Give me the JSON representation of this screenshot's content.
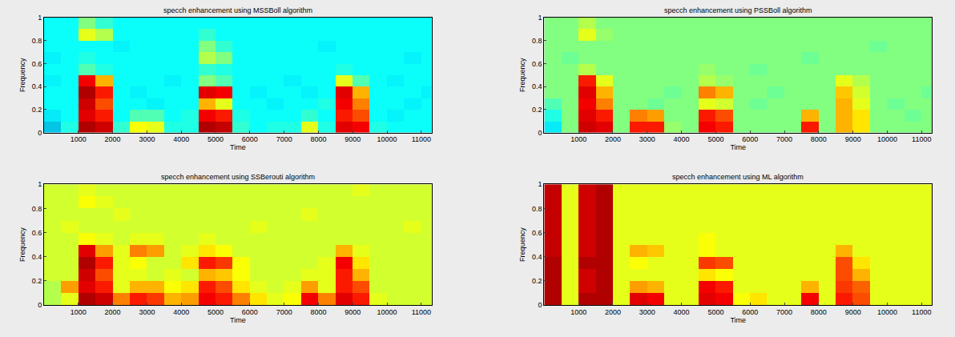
{
  "chart_data": [
    {
      "type": "heatmap",
      "title": "specch enhancement using MSSBoll algorithm",
      "x_label": "Time",
      "y_label": "Frequency",
      "color": "Jet",
      "grid": false,
      "zlim": [
        0,
        1
      ],
      "xlim": [
        0,
        11300
      ],
      "xticks": [
        1000,
        2000,
        3000,
        4000,
        5000,
        6000,
        7000,
        8000,
        9000,
        10000,
        11000
      ],
      "ylim": [
        0,
        1
      ],
      "yticks": [
        0,
        0.2,
        0.4,
        0.6,
        0.8,
        1
      ],
      "x": [
        250,
        750,
        1250,
        1750,
        2250,
        2750,
        3250,
        3750,
        4250,
        4750,
        5250,
        5750,
        6250,
        6750,
        7250,
        7750,
        8250,
        8750,
        9250,
        9750,
        10250,
        10750,
        11250
      ],
      "y": [
        0.05,
        0.15,
        0.25,
        0.35,
        0.45,
        0.55,
        0.65,
        0.75,
        0.85,
        0.95
      ],
      "z": [
        [
          0.3,
          0.4,
          0.95,
          0.92,
          0.42,
          0.62,
          0.6,
          0.4,
          0.4,
          0.95,
          0.93,
          0.42,
          0.38,
          0.4,
          0.4,
          0.6,
          0.4,
          0.9,
          0.88,
          0.4,
          0.38,
          0.38,
          0.38
        ],
        [
          0.35,
          0.38,
          0.9,
          0.85,
          0.38,
          0.45,
          0.45,
          0.38,
          0.4,
          0.88,
          0.85,
          0.4,
          0.38,
          0.38,
          0.38,
          0.42,
          0.38,
          0.85,
          0.8,
          0.38,
          0.36,
          0.38,
          0.38
        ],
        [
          0.38,
          0.38,
          0.92,
          0.8,
          0.38,
          0.38,
          0.36,
          0.38,
          0.38,
          0.7,
          0.6,
          0.38,
          0.38,
          0.36,
          0.38,
          0.38,
          0.4,
          0.88,
          0.75,
          0.38,
          0.38,
          0.36,
          0.38
        ],
        [
          0.38,
          0.38,
          0.95,
          0.85,
          0.38,
          0.36,
          0.38,
          0.38,
          0.38,
          0.9,
          0.88,
          0.38,
          0.36,
          0.38,
          0.38,
          0.36,
          0.38,
          0.9,
          0.7,
          0.38,
          0.38,
          0.38,
          0.36
        ],
        [
          0.36,
          0.38,
          0.88,
          0.7,
          0.38,
          0.38,
          0.38,
          0.36,
          0.38,
          0.5,
          0.45,
          0.38,
          0.38,
          0.38,
          0.36,
          0.38,
          0.38,
          0.6,
          0.45,
          0.38,
          0.36,
          0.38,
          0.38
        ],
        [
          0.38,
          0.38,
          0.45,
          0.4,
          0.38,
          0.38,
          0.38,
          0.38,
          0.38,
          0.42,
          0.4,
          0.38,
          0.38,
          0.38,
          0.38,
          0.38,
          0.38,
          0.4,
          0.38,
          0.38,
          0.38,
          0.38,
          0.38
        ],
        [
          0.36,
          0.38,
          0.4,
          0.38,
          0.38,
          0.38,
          0.38,
          0.38,
          0.38,
          0.55,
          0.5,
          0.38,
          0.38,
          0.38,
          0.38,
          0.38,
          0.38,
          0.38,
          0.38,
          0.38,
          0.38,
          0.36,
          0.38
        ],
        [
          0.38,
          0.38,
          0.38,
          0.38,
          0.36,
          0.38,
          0.38,
          0.38,
          0.38,
          0.5,
          0.42,
          0.38,
          0.38,
          0.38,
          0.38,
          0.38,
          0.36,
          0.38,
          0.38,
          0.38,
          0.38,
          0.38,
          0.38
        ],
        [
          0.38,
          0.38,
          0.6,
          0.55,
          0.38,
          0.38,
          0.38,
          0.38,
          0.38,
          0.42,
          0.38,
          0.38,
          0.38,
          0.38,
          0.38,
          0.38,
          0.38,
          0.38,
          0.38,
          0.38,
          0.38,
          0.38,
          0.38
        ],
        [
          0.38,
          0.38,
          0.5,
          0.42,
          0.38,
          0.38,
          0.38,
          0.38,
          0.38,
          0.38,
          0.38,
          0.38,
          0.38,
          0.38,
          0.38,
          0.38,
          0.38,
          0.38,
          0.38,
          0.38,
          0.38,
          0.38,
          0.38
        ]
      ]
    },
    {
      "type": "heatmap",
      "title": "specch enhancement using PSSBoll algorithm",
      "x_label": "Time",
      "y_label": "Frequency",
      "color": "Jet",
      "grid": false,
      "zlim": [
        0,
        1
      ],
      "xlim": [
        0,
        11300
      ],
      "xticks": [
        1000,
        2000,
        3000,
        4000,
        5000,
        6000,
        7000,
        8000,
        9000,
        10000,
        11000
      ],
      "ylim": [
        0,
        1
      ],
      "yticks": [
        0,
        0.2,
        0.4,
        0.6,
        0.8,
        1
      ],
      "x": [
        250,
        750,
        1250,
        1750,
        2250,
        2750,
        3250,
        3750,
        4250,
        4750,
        5250,
        5750,
        6250,
        6750,
        7250,
        7750,
        8250,
        8750,
        9250,
        9750,
        10250,
        10750,
        11250
      ],
      "y": [
        0.05,
        0.15,
        0.25,
        0.35,
        0.45,
        0.55,
        0.65,
        0.75,
        0.85,
        0.95
      ],
      "z": [
        [
          0.35,
          0.5,
          0.92,
          0.9,
          0.5,
          0.85,
          0.85,
          0.52,
          0.5,
          0.88,
          0.85,
          0.5,
          0.5,
          0.5,
          0.5,
          0.85,
          0.5,
          0.7,
          0.65,
          0.5,
          0.5,
          0.5,
          0.5
        ],
        [
          0.4,
          0.5,
          0.9,
          0.85,
          0.5,
          0.75,
          0.72,
          0.5,
          0.5,
          0.85,
          0.8,
          0.5,
          0.5,
          0.5,
          0.5,
          0.7,
          0.5,
          0.7,
          0.65,
          0.5,
          0.5,
          0.48,
          0.5
        ],
        [
          0.45,
          0.5,
          0.88,
          0.75,
          0.5,
          0.5,
          0.48,
          0.5,
          0.5,
          0.6,
          0.58,
          0.5,
          0.48,
          0.5,
          0.5,
          0.5,
          0.5,
          0.7,
          0.6,
          0.5,
          0.48,
          0.5,
          0.5
        ],
        [
          0.5,
          0.5,
          0.9,
          0.7,
          0.5,
          0.5,
          0.5,
          0.48,
          0.5,
          0.75,
          0.7,
          0.5,
          0.5,
          0.48,
          0.5,
          0.5,
          0.5,
          0.68,
          0.58,
          0.5,
          0.5,
          0.5,
          0.48
        ],
        [
          0.5,
          0.5,
          0.85,
          0.6,
          0.5,
          0.5,
          0.5,
          0.5,
          0.5,
          0.55,
          0.52,
          0.5,
          0.5,
          0.5,
          0.5,
          0.5,
          0.5,
          0.6,
          0.55,
          0.5,
          0.5,
          0.5,
          0.5
        ],
        [
          0.5,
          0.5,
          0.55,
          0.5,
          0.5,
          0.5,
          0.5,
          0.5,
          0.5,
          0.52,
          0.5,
          0.5,
          0.48,
          0.5,
          0.5,
          0.5,
          0.5,
          0.5,
          0.5,
          0.5,
          0.5,
          0.5,
          0.5
        ],
        [
          0.5,
          0.48,
          0.5,
          0.5,
          0.5,
          0.5,
          0.5,
          0.5,
          0.5,
          0.5,
          0.5,
          0.5,
          0.5,
          0.5,
          0.5,
          0.48,
          0.5,
          0.5,
          0.5,
          0.5,
          0.5,
          0.5,
          0.5
        ],
        [
          0.5,
          0.5,
          0.5,
          0.5,
          0.5,
          0.5,
          0.5,
          0.5,
          0.5,
          0.5,
          0.5,
          0.5,
          0.5,
          0.5,
          0.5,
          0.5,
          0.5,
          0.5,
          0.5,
          0.48,
          0.5,
          0.5,
          0.5
        ],
        [
          0.5,
          0.5,
          0.6,
          0.52,
          0.5,
          0.5,
          0.5,
          0.5,
          0.5,
          0.5,
          0.5,
          0.5,
          0.5,
          0.5,
          0.5,
          0.5,
          0.5,
          0.5,
          0.5,
          0.5,
          0.5,
          0.5,
          0.5
        ],
        [
          0.5,
          0.5,
          0.55,
          0.5,
          0.5,
          0.5,
          0.5,
          0.5,
          0.5,
          0.5,
          0.5,
          0.5,
          0.5,
          0.5,
          0.5,
          0.5,
          0.5,
          0.5,
          0.5,
          0.5,
          0.5,
          0.5,
          0.5
        ]
      ]
    },
    {
      "type": "heatmap",
      "title": "specch enhancement using SSBerouti algorithm",
      "x_label": "Time",
      "y_label": "Frequency",
      "color": "Jet",
      "grid": false,
      "zlim": [
        0,
        1
      ],
      "xlim": [
        0,
        11300
      ],
      "xticks": [
        1000,
        2000,
        3000,
        4000,
        5000,
        6000,
        7000,
        8000,
        9000,
        10000,
        11000
      ],
      "ylim": [
        0,
        1
      ],
      "yticks": [
        0,
        0.2,
        0.4,
        0.6,
        0.8,
        1
      ],
      "x": [
        250,
        750,
        1250,
        1750,
        2250,
        2750,
        3250,
        3750,
        4250,
        4750,
        5250,
        5750,
        6250,
        6750,
        7250,
        7750,
        8250,
        8750,
        9250,
        9750,
        10250,
        10750,
        11250
      ],
      "y": [
        0.05,
        0.15,
        0.25,
        0.35,
        0.45,
        0.55,
        0.65,
        0.75,
        0.85,
        0.95
      ],
      "z": [
        [
          0.55,
          0.6,
          0.95,
          0.92,
          0.75,
          0.85,
          0.82,
          0.7,
          0.72,
          0.88,
          0.85,
          0.75,
          0.65,
          0.6,
          0.62,
          0.88,
          0.75,
          0.9,
          0.85,
          0.6,
          0.58,
          0.58,
          0.58
        ],
        [
          0.55,
          0.72,
          0.9,
          0.85,
          0.6,
          0.7,
          0.7,
          0.62,
          0.65,
          0.85,
          0.8,
          0.65,
          0.6,
          0.58,
          0.6,
          0.72,
          0.6,
          0.85,
          0.8,
          0.58,
          0.58,
          0.58,
          0.58
        ],
        [
          0.58,
          0.58,
          0.92,
          0.8,
          0.6,
          0.6,
          0.58,
          0.6,
          0.58,
          0.7,
          0.68,
          0.62,
          0.58,
          0.58,
          0.58,
          0.6,
          0.6,
          0.85,
          0.7,
          0.58,
          0.58,
          0.58,
          0.58
        ],
        [
          0.58,
          0.58,
          0.95,
          0.85,
          0.6,
          0.62,
          0.58,
          0.58,
          0.65,
          0.85,
          0.82,
          0.62,
          0.58,
          0.58,
          0.58,
          0.58,
          0.6,
          0.88,
          0.65,
          0.58,
          0.58,
          0.58,
          0.58
        ],
        [
          0.58,
          0.58,
          0.9,
          0.72,
          0.6,
          0.75,
          0.72,
          0.58,
          0.6,
          0.65,
          0.62,
          0.58,
          0.58,
          0.58,
          0.58,
          0.58,
          0.58,
          0.7,
          0.6,
          0.58,
          0.58,
          0.58,
          0.58
        ],
        [
          0.58,
          0.58,
          0.62,
          0.6,
          0.58,
          0.6,
          0.6,
          0.58,
          0.58,
          0.6,
          0.58,
          0.58,
          0.58,
          0.58,
          0.58,
          0.58,
          0.58,
          0.58,
          0.58,
          0.58,
          0.58,
          0.58,
          0.58
        ],
        [
          0.58,
          0.6,
          0.58,
          0.58,
          0.58,
          0.58,
          0.58,
          0.58,
          0.58,
          0.58,
          0.58,
          0.58,
          0.6,
          0.58,
          0.58,
          0.58,
          0.58,
          0.58,
          0.58,
          0.58,
          0.58,
          0.6,
          0.58
        ],
        [
          0.58,
          0.58,
          0.58,
          0.58,
          0.6,
          0.58,
          0.58,
          0.58,
          0.58,
          0.58,
          0.58,
          0.58,
          0.58,
          0.58,
          0.58,
          0.6,
          0.58,
          0.58,
          0.58,
          0.58,
          0.58,
          0.58,
          0.58
        ],
        [
          0.58,
          0.58,
          0.62,
          0.6,
          0.58,
          0.58,
          0.58,
          0.58,
          0.58,
          0.58,
          0.58,
          0.58,
          0.58,
          0.58,
          0.58,
          0.58,
          0.58,
          0.58,
          0.58,
          0.58,
          0.58,
          0.58,
          0.58
        ],
        [
          0.58,
          0.58,
          0.6,
          0.58,
          0.58,
          0.58,
          0.58,
          0.58,
          0.58,
          0.58,
          0.58,
          0.58,
          0.58,
          0.58,
          0.58,
          0.58,
          0.58,
          0.58,
          0.6,
          0.58,
          0.58,
          0.58,
          0.58
        ]
      ]
    },
    {
      "type": "heatmap",
      "title": "specch enhancement using ML algorithm",
      "x_label": "Time",
      "y_label": "Frequency",
      "color": "Jet",
      "grid": false,
      "zlim": [
        0,
        1
      ],
      "xlim": [
        0,
        11300
      ],
      "xticks": [
        1000,
        2000,
        3000,
        4000,
        5000,
        6000,
        7000,
        8000,
        9000,
        10000,
        11000
      ],
      "ylim": [
        0,
        1
      ],
      "yticks": [
        0,
        0.2,
        0.4,
        0.6,
        0.8,
        1
      ],
      "x": [
        250,
        750,
        1250,
        1750,
        2250,
        2750,
        3250,
        3750,
        4250,
        4750,
        5250,
        5750,
        6250,
        6750,
        7250,
        7750,
        8250,
        8750,
        9250,
        9750,
        10250,
        10750,
        11250
      ],
      "y": [
        0.05,
        0.15,
        0.25,
        0.35,
        0.45,
        0.55,
        0.65,
        0.75,
        0.85,
        0.95
      ],
      "z": [
        [
          0.95,
          0.6,
          0.95,
          0.95,
          0.6,
          0.9,
          0.88,
          0.6,
          0.6,
          0.9,
          0.88,
          0.62,
          0.65,
          0.6,
          0.6,
          0.88,
          0.6,
          0.85,
          0.8,
          0.6,
          0.6,
          0.6,
          0.6
        ],
        [
          0.95,
          0.6,
          0.92,
          0.95,
          0.6,
          0.72,
          0.7,
          0.6,
          0.6,
          0.88,
          0.85,
          0.6,
          0.6,
          0.6,
          0.6,
          0.7,
          0.6,
          0.82,
          0.78,
          0.6,
          0.6,
          0.6,
          0.6
        ],
        [
          0.95,
          0.6,
          0.92,
          0.95,
          0.6,
          0.6,
          0.6,
          0.6,
          0.6,
          0.65,
          0.62,
          0.6,
          0.6,
          0.6,
          0.6,
          0.6,
          0.6,
          0.8,
          0.7,
          0.6,
          0.6,
          0.6,
          0.6
        ],
        [
          0.95,
          0.6,
          0.95,
          0.95,
          0.6,
          0.62,
          0.6,
          0.6,
          0.6,
          0.82,
          0.8,
          0.6,
          0.6,
          0.6,
          0.6,
          0.6,
          0.6,
          0.8,
          0.65,
          0.6,
          0.6,
          0.6,
          0.6
        ],
        [
          0.93,
          0.6,
          0.92,
          0.95,
          0.6,
          0.7,
          0.68,
          0.6,
          0.6,
          0.62,
          0.6,
          0.6,
          0.6,
          0.6,
          0.6,
          0.6,
          0.6,
          0.7,
          0.6,
          0.6,
          0.6,
          0.6,
          0.6
        ],
        [
          0.93,
          0.6,
          0.92,
          0.95,
          0.6,
          0.6,
          0.6,
          0.6,
          0.6,
          0.62,
          0.6,
          0.6,
          0.6,
          0.6,
          0.6,
          0.6,
          0.6,
          0.6,
          0.6,
          0.6,
          0.6,
          0.6,
          0.6
        ],
        [
          0.93,
          0.6,
          0.92,
          0.95,
          0.6,
          0.6,
          0.6,
          0.6,
          0.6,
          0.6,
          0.6,
          0.6,
          0.6,
          0.6,
          0.6,
          0.6,
          0.6,
          0.6,
          0.6,
          0.6,
          0.6,
          0.6,
          0.6
        ],
        [
          0.93,
          0.6,
          0.92,
          0.95,
          0.6,
          0.6,
          0.6,
          0.6,
          0.6,
          0.6,
          0.6,
          0.6,
          0.6,
          0.6,
          0.6,
          0.6,
          0.6,
          0.6,
          0.6,
          0.6,
          0.6,
          0.6,
          0.6
        ],
        [
          0.93,
          0.6,
          0.92,
          0.95,
          0.6,
          0.6,
          0.6,
          0.6,
          0.6,
          0.6,
          0.6,
          0.6,
          0.6,
          0.6,
          0.6,
          0.6,
          0.6,
          0.6,
          0.6,
          0.6,
          0.6,
          0.6,
          0.6
        ],
        [
          0.93,
          0.6,
          0.92,
          0.95,
          0.6,
          0.6,
          0.6,
          0.6,
          0.6,
          0.6,
          0.6,
          0.6,
          0.6,
          0.6,
          0.6,
          0.6,
          0.6,
          0.6,
          0.6,
          0.6,
          0.6,
          0.6,
          0.6
        ]
      ]
    }
  ]
}
